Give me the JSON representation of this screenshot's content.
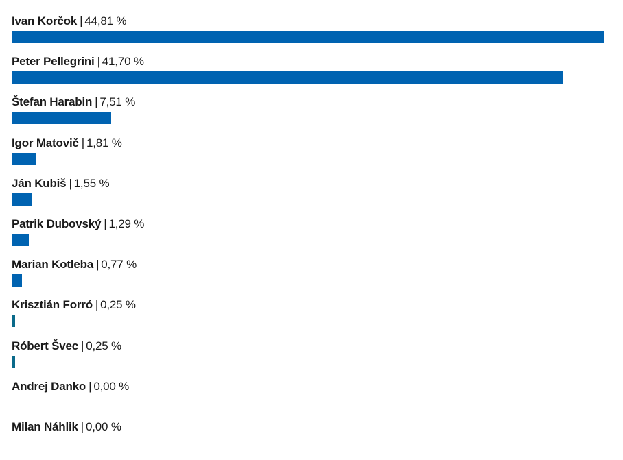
{
  "chart_data": {
    "type": "bar",
    "orientation": "horizontal",
    "title": "",
    "xlabel": "",
    "ylabel": "",
    "xlim": [
      0,
      44.81
    ],
    "grid": false,
    "legend": "none",
    "bar_color": "#0063b1",
    "separator": "|",
    "unit": "%",
    "categories": [
      "Ivan Korčok",
      "Peter Pellegrini",
      "Štefan Harabin",
      "Igor Matovič",
      "Ján Kubiš",
      "Patrik Dubovský",
      "Marian Kotleba",
      "Krisztián Forró",
      "Róbert Švec",
      "Andrej Danko",
      "Milan Náhlik"
    ],
    "values": [
      44.81,
      41.7,
      7.51,
      1.81,
      1.55,
      1.29,
      0.77,
      0.25,
      0.25,
      0.0,
      0.0
    ],
    "value_labels": [
      "44,81 %",
      "41,70 %",
      "7,51 %",
      "1,81 %",
      "1,55 %",
      "1,29 %",
      "0,77 %",
      "0,25 %",
      "0,25 %",
      "0,00 %",
      "0,00 %"
    ]
  }
}
